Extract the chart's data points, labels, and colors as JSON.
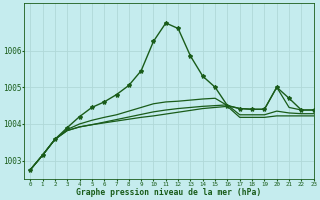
{
  "xlabel": "Graphe pression niveau de la mer (hPa)",
  "xlim": [
    -0.5,
    23
  ],
  "ylim": [
    1002.5,
    1007.3
  ],
  "yticks": [
    1003,
    1004,
    1005,
    1006
  ],
  "xticks": [
    0,
    1,
    2,
    3,
    4,
    5,
    6,
    7,
    8,
    9,
    10,
    11,
    12,
    13,
    14,
    15,
    16,
    17,
    18,
    19,
    20,
    21,
    22,
    23
  ],
  "background_color": "#c5ecee",
  "grid_color": "#b0d8d8",
  "line_color": "#1a5c1a",
  "lines": [
    [
      1002.75,
      1003.15,
      1003.58,
      1003.82,
      1003.92,
      1003.98,
      1004.03,
      1004.08,
      1004.13,
      1004.18,
      1004.22,
      1004.27,
      1004.32,
      1004.37,
      1004.42,
      1004.45,
      1004.48,
      1004.18,
      1004.18,
      1004.18,
      1004.22,
      1004.22,
      1004.22,
      1004.22
    ],
    [
      1002.75,
      1003.15,
      1003.58,
      1003.82,
      1003.92,
      1003.98,
      1004.05,
      1004.12,
      1004.19,
      1004.26,
      1004.33,
      1004.38,
      1004.42,
      1004.45,
      1004.48,
      1004.5,
      1004.52,
      1004.25,
      1004.25,
      1004.25,
      1004.35,
      1004.3,
      1004.28,
      1004.28
    ],
    [
      1002.75,
      1003.15,
      1003.58,
      1003.85,
      1004.0,
      1004.1,
      1004.18,
      1004.25,
      1004.35,
      1004.45,
      1004.55,
      1004.6,
      1004.62,
      1004.65,
      1004.68,
      1004.7,
      1004.5,
      1004.42,
      1004.4,
      1004.4,
      1005.0,
      1004.45,
      1004.38,
      1004.38
    ]
  ],
  "main_line": [
    1002.75,
    1003.15,
    1003.58,
    1003.9,
    1004.2,
    1004.45,
    1004.6,
    1004.8,
    1005.05,
    1005.45,
    1006.25,
    1006.75,
    1006.6,
    1005.85,
    1005.3,
    1005.0,
    1004.5,
    1004.42,
    1004.4,
    1004.4,
    1005.0,
    1004.7,
    1004.38,
    1004.38
  ]
}
